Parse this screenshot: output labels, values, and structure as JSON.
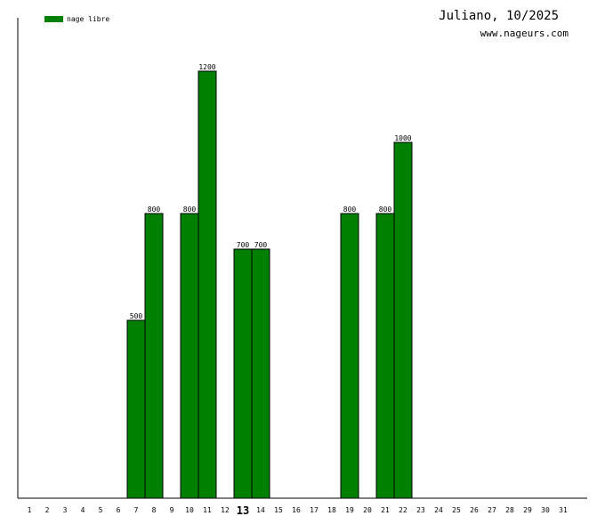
{
  "header": {
    "title": "Juliano, 10/2025",
    "website": "www.nageurs.com"
  },
  "chart_data": {
    "type": "bar",
    "title": "Juliano, 10/2025",
    "xlabel": "",
    "ylabel": "",
    "categories": [
      "1",
      "2",
      "3",
      "4",
      "5",
      "6",
      "7",
      "8",
      "9",
      "10",
      "11",
      "12",
      "13",
      "14",
      "15",
      "16",
      "17",
      "18",
      "19",
      "20",
      "21",
      "22",
      "23",
      "24",
      "25",
      "26",
      "27",
      "28",
      "29",
      "30",
      "31"
    ],
    "series": [
      {
        "name": "nage libre",
        "color": "#008000",
        "values": [
          0,
          0,
          0,
          0,
          0,
          0,
          500,
          800,
          0,
          800,
          1200,
          0,
          700,
          700,
          0,
          0,
          0,
          0,
          800,
          0,
          800,
          1000,
          0,
          0,
          0,
          0,
          0,
          0,
          0,
          0,
          0
        ]
      }
    ],
    "ylim": [
      0,
      1200
    ],
    "highlighted_category": "13",
    "legend_position": "top-left",
    "grid": false
  }
}
